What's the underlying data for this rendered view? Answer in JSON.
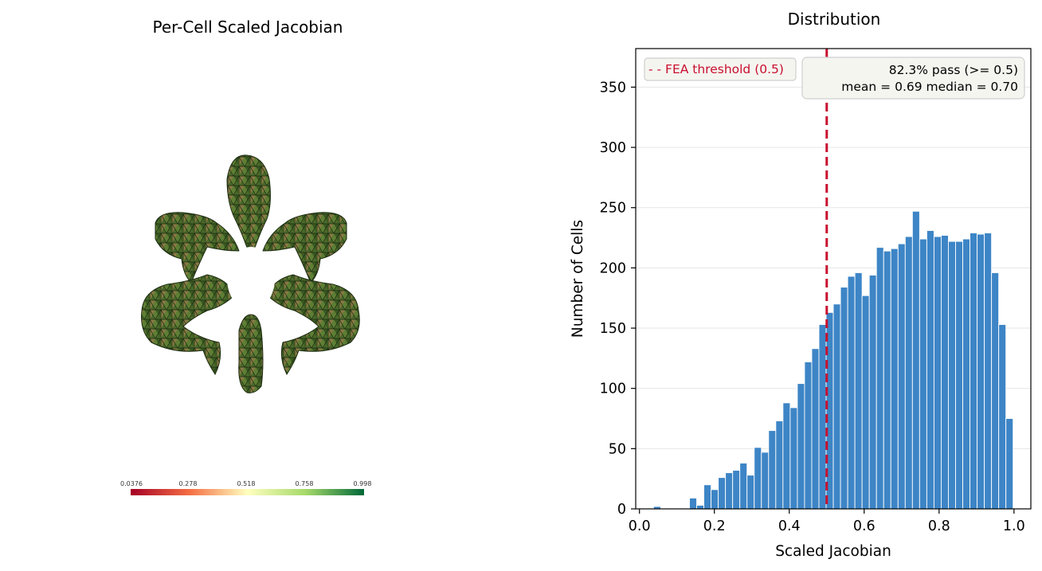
{
  "left_panel": {
    "title": "Per-Cell Scaled Jacobian",
    "colorbar": {
      "ticks": [
        "0.0376",
        "0.278",
        "0.518",
        "0.758",
        "0.998"
      ],
      "colors": [
        "#a50026",
        "#f46d43",
        "#ffffbf",
        "#a6d96a",
        "#006837"
      ]
    }
  },
  "chart_data": {
    "type": "bar",
    "title": "Distribution",
    "xlabel": "Scaled Jacobian",
    "ylabel": "Number of Cells",
    "xlim": [
      -0.01,
      1.045
    ],
    "ylim": [
      0,
      382
    ],
    "xticks": [
      0.0,
      0.2,
      0.4,
      0.6,
      0.8,
      1.0
    ],
    "xtick_labels": [
      "0.0",
      "0.2",
      "0.4",
      "0.6",
      "0.8",
      "1.0"
    ],
    "yticks": [
      0,
      50,
      100,
      150,
      200,
      250,
      300,
      350
    ],
    "grid": "horizontal",
    "bin_width": 0.0192,
    "bin_starts": [
      0.0376,
      0.0568,
      0.076,
      0.0952,
      0.1144,
      0.1336,
      0.1528,
      0.172,
      0.1912,
      0.2104,
      0.2296,
      0.2488,
      0.268,
      0.2872,
      0.3064,
      0.3256,
      0.3448,
      0.364,
      0.3832,
      0.4024,
      0.4216,
      0.4408,
      0.46,
      0.4792,
      0.4984,
      0.5176,
      0.5368,
      0.556,
      0.5752,
      0.5944,
      0.6136,
      0.6328,
      0.652,
      0.6712,
      0.6904,
      0.7096,
      0.7288,
      0.748,
      0.7672,
      0.7864,
      0.8056,
      0.8248,
      0.844,
      0.8632,
      0.8824,
      0.9016,
      0.9208,
      0.94,
      0.9592,
      0.9784
    ],
    "values": [
      2,
      0,
      0,
      0,
      0,
      9,
      3,
      20,
      16,
      26,
      30,
      32,
      38,
      28,
      51,
      47,
      65,
      73,
      88,
      84,
      104,
      122,
      133,
      153,
      163,
      170,
      184,
      193,
      196,
      177,
      194,
      217,
      214,
      216,
      220,
      226,
      247,
      224,
      231,
      226,
      227,
      222,
      222,
      224,
      229,
      228,
      229,
      196,
      153,
      75
    ],
    "bar_color": "#3d85c6",
    "threshold": {
      "value": 0.5,
      "label": "- - FEA threshold (0.5)",
      "color": "#c8102e"
    },
    "stats_box": {
      "line1": "82.3% pass (>= 0.5)",
      "line2": "mean = 0.69   median = 0.70"
    }
  }
}
